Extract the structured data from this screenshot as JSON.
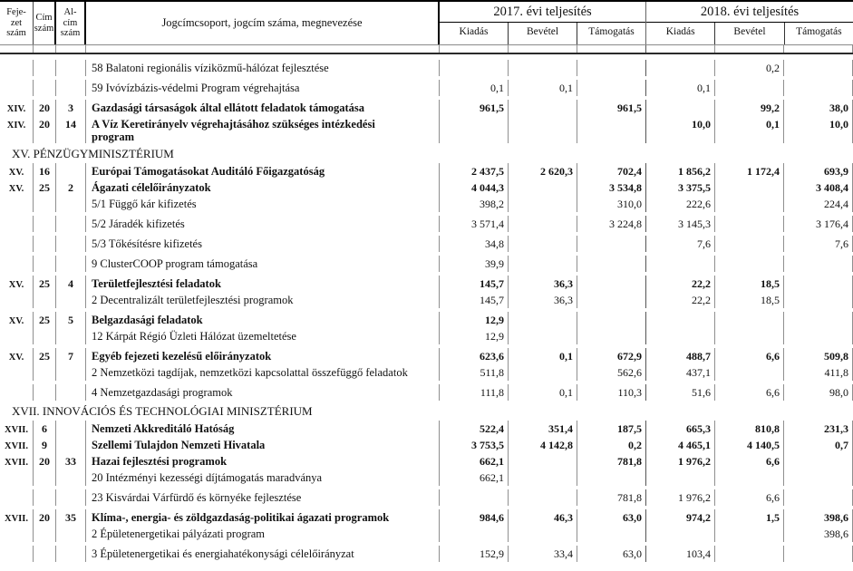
{
  "header": {
    "col_fejezet": "Feje-\nzet\nszám",
    "col_cim": "Cím\nszám",
    "col_alcim": "Al-\ncím\nszám",
    "col_name": "Jogcímcsoport, jogcím száma, megnevezése",
    "year_2017": "2017. évi teljesítés",
    "year_2018": "2018. évi teljesítés",
    "subcols": [
      "Kiadás",
      "Bevétel",
      "Támogatás"
    ]
  },
  "rows": [
    {
      "name": "58 Balatoni regionális víziközmű-hálózat fejlesztése",
      "values": [
        "",
        "",
        "",
        "",
        "0,2",
        ""
      ]
    },
    {
      "name": "59 Ivóvízbázis-védelmi Program végrehajtása",
      "values": [
        "0,1",
        "0,1",
        "",
        "0,1",
        "",
        ""
      ]
    },
    {
      "fejezet": "XIV.",
      "cim": "20",
      "alcim": "3",
      "bold": true,
      "name": "Gazdasági társaságok által ellátott feladatok támogatása",
      "values": [
        "961,5",
        "",
        "961,5",
        "",
        "99,2",
        "38,0"
      ]
    },
    {
      "fejezet": "XIV.",
      "cim": "20",
      "alcim": "14",
      "bold": true,
      "tight": true,
      "name": "A Víz Keretirányelv végrehajtásához szükséges intézkedési",
      "name2": "program",
      "values": [
        "",
        "",
        "",
        "10,0",
        "0,1",
        "10,0"
      ]
    },
    {
      "type": "section",
      "name": "XV. PÉNZÜGYMINISZTÉRIUM"
    },
    {
      "fejezet": "XV.",
      "cim": "16",
      "alcim": "",
      "bold": true,
      "tight": true,
      "name": "Európai Támogatásokat Auditáló Főigazgatóság",
      "values": [
        "2 437,5",
        "2 620,3",
        "702,4",
        "1 856,2",
        "1 172,4",
        "693,9"
      ]
    },
    {
      "fejezet": "XV.",
      "cim": "25",
      "alcim": "2",
      "bold": true,
      "tight": true,
      "name": "Ágazati célelőirányzatok",
      "values": [
        "4 044,3",
        "",
        "3 534,8",
        "3 375,5",
        "",
        "3 408,4"
      ]
    },
    {
      "tight": true,
      "name": "5/1 Függő kár kifizetés",
      "values": [
        "398,2",
        "",
        "310,0",
        "222,6",
        "",
        "224,4"
      ]
    },
    {
      "name": "5/2 Járadék kifizetés",
      "values": [
        "3 571,4",
        "",
        "3 224,8",
        "3 145,3",
        "",
        "3 176,4"
      ]
    },
    {
      "name": "5/3 Tőkésítésre kifizetés",
      "values": [
        "34,8",
        "",
        "",
        "7,6",
        "",
        "7,6"
      ]
    },
    {
      "name": "9 ClusterCOOP program támogatása",
      "values": [
        "39,9",
        "",
        "",
        "",
        "",
        ""
      ]
    },
    {
      "fejezet": "XV.",
      "cim": "25",
      "alcim": "4",
      "bold": true,
      "name": "Területfejlesztési feladatok",
      "values": [
        "145,7",
        "36,3",
        "",
        "22,2",
        "18,5",
        ""
      ]
    },
    {
      "tight": true,
      "name": "2 Decentralizált területfejlesztési programok",
      "values": [
        "145,7",
        "36,3",
        "",
        "22,2",
        "18,5",
        ""
      ]
    },
    {
      "fejezet": "XV.",
      "cim": "25",
      "alcim": "5",
      "bold": true,
      "name": "Belgazdasági feladatok",
      "values": [
        "12,9",
        "",
        "",
        "",
        "",
        ""
      ]
    },
    {
      "tight": true,
      "name": "12 Kárpát Régió Üzleti Hálózat üzemeltetése",
      "values": [
        "12,9",
        "",
        "",
        "",
        "",
        ""
      ]
    },
    {
      "fejezet": "XV.",
      "cim": "25",
      "alcim": "7",
      "bold": true,
      "name": "Egyéb fejezeti kezelésű előirányzatok",
      "values": [
        "623,6",
        "0,1",
        "672,9",
        "488,7",
        "6,6",
        "509,8"
      ]
    },
    {
      "tight": true,
      "name": "2 Nemzetközi tagdíjak, nemzetközi kapcsolattal összefüggő feladatok",
      "values": [
        "511,8",
        "",
        "562,6",
        "437,1",
        "",
        "411,8"
      ]
    },
    {
      "name": "4 Nemzetgazdasági programok",
      "values": [
        "111,8",
        "0,1",
        "110,3",
        "51,6",
        "6,6",
        "98,0"
      ]
    },
    {
      "type": "section",
      "name": "XVII. INNOVÁCIÓS ÉS TECHNOLÓGIAI MINISZTÉRIUM"
    },
    {
      "fejezet": "XVII.",
      "cim": "6",
      "alcim": "",
      "bold": true,
      "tight": true,
      "name": "Nemzeti Akkreditáló Hatóság",
      "values": [
        "522,4",
        "351,4",
        "187,5",
        "665,3",
        "810,8",
        "231,3"
      ]
    },
    {
      "fejezet": "XVII.",
      "cim": "9",
      "alcim": "",
      "bold": true,
      "tight": true,
      "name": "Szellemi Tulajdon Nemzeti Hivatala",
      "values": [
        "3 753,5",
        "4 142,8",
        "0,2",
        "4 465,1",
        "4 140,5",
        "0,7"
      ]
    },
    {
      "fejezet": "XVII.",
      "cim": "20",
      "alcim": "33",
      "bold": true,
      "tight": true,
      "name": "Hazai fejlesztési programok",
      "values": [
        "662,1",
        "",
        "781,8",
        "1 976,2",
        "6,6",
        ""
      ]
    },
    {
      "tight": true,
      "name": "20 Intézményi kezességi díjtámogatás maradványa",
      "values": [
        "662,1",
        "",
        "",
        "",
        "",
        ""
      ]
    },
    {
      "name": "23 Kisvárdai Várfürdő és környéke fejlesztése",
      "values": [
        "",
        "",
        "781,8",
        "1 976,2",
        "6,6",
        ""
      ]
    },
    {
      "fejezet": "XVII.",
      "cim": "20",
      "alcim": "35",
      "bold": true,
      "name": "Klíma-, energia- és zöldgazdaság-politikai ágazati programok",
      "values": [
        "984,6",
        "46,3",
        "63,0",
        "974,2",
        "1,5",
        "398,6"
      ]
    },
    {
      "tight": true,
      "name": "2 Épületenergetikai pályázati program",
      "values": [
        "",
        "",
        "",
        "",
        "",
        "398,6"
      ]
    },
    {
      "name": "3 Épületenergetikai és energiahatékonysági célelőirányzat",
      "values": [
        "152,9",
        "33,4",
        "63,0",
        "103,4",
        "",
        ""
      ]
    }
  ]
}
